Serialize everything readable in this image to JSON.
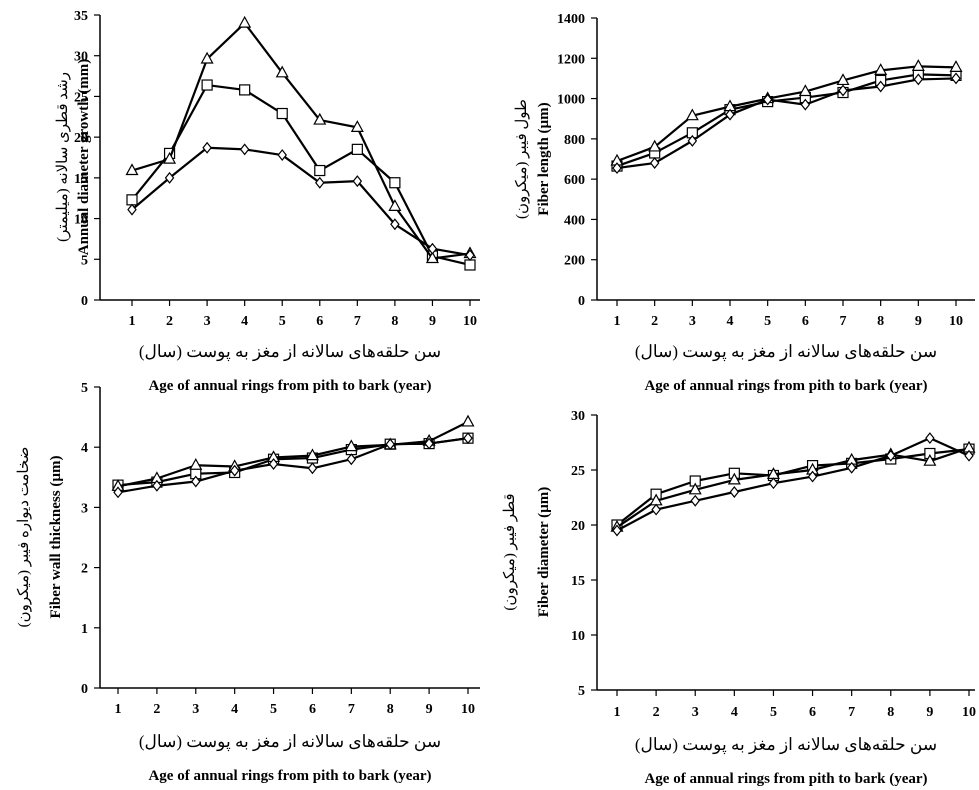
{
  "chart_data": [
    {
      "type": "line",
      "ylabel_fa": "رشد قطری سالانه (میلیمتر)",
      "ylabel_en": "Annual diameter growth (mm)",
      "xlabel_fa": "سن حلقه‌های سالانه از مغز به پوست (سال)",
      "xlabel_en": "Age of annual rings from pith to bark (year)",
      "ylim": [
        0,
        35
      ],
      "y_ticks": [
        0,
        5,
        10,
        15,
        20,
        25,
        30,
        35
      ],
      "x": [
        1,
        2,
        3,
        4,
        5,
        6,
        7,
        8,
        9,
        10
      ],
      "series": [
        {
          "marker": "square",
          "values": [
            12.3,
            18.0,
            26.4,
            25.8,
            22.9,
            15.9,
            18.5,
            14.4,
            5.4,
            4.3
          ]
        },
        {
          "marker": "triangle",
          "values": [
            15.9,
            17.3,
            29.6,
            34.0,
            27.9,
            22.1,
            21.2,
            11.5,
            5.1,
            5.7
          ]
        },
        {
          "marker": "diamond",
          "values": [
            11.1,
            15.0,
            18.7,
            18.5,
            17.8,
            14.4,
            14.6,
            9.3,
            6.3,
            5.5
          ]
        }
      ]
    },
    {
      "type": "line",
      "ylabel_fa": "طول فیبر (میکرون)",
      "ylabel_en": "Fiber length (µm)",
      "xlabel_fa": "سن حلقه‌های سالانه از مغز به پوست (سال)",
      "xlabel_en": "Age of annual rings from pith to bark (year)",
      "ylim": [
        0,
        1400
      ],
      "y_ticks": [
        0,
        200,
        400,
        600,
        800,
        1000,
        1200,
        1400
      ],
      "x": [
        1,
        2,
        3,
        4,
        5,
        6,
        7,
        8,
        9,
        10
      ],
      "series": [
        {
          "marker": "square",
          "values": [
            665,
            730,
            830,
            945,
            985,
            1005,
            1030,
            1090,
            1120,
            1115
          ]
        },
        {
          "marker": "triangle",
          "values": [
            690,
            760,
            915,
            960,
            1000,
            1035,
            1090,
            1140,
            1160,
            1155
          ]
        },
        {
          "marker": "diamond",
          "values": [
            655,
            680,
            790,
            920,
            995,
            970,
            1040,
            1060,
            1095,
            1100
          ]
        }
      ]
    },
    {
      "type": "line",
      "ylabel_fa": "ضخامت دیواره فیبر (میکرون)",
      "ylabel_en": "Fiber wall thickness (µm)",
      "xlabel_fa": "سن حلقه‌های سالانه از مغز به پوست (سال)",
      "xlabel_en": "Age of annual rings from pith to bark (year)",
      "ylim": [
        0,
        5
      ],
      "y_ticks": [
        0,
        1,
        2,
        3,
        4,
        5
      ],
      "x": [
        1,
        2,
        3,
        4,
        5,
        6,
        7,
        8,
        9,
        10
      ],
      "series": [
        {
          "marker": "square",
          "values": [
            3.37,
            3.42,
            3.56,
            3.58,
            3.8,
            3.82,
            3.96,
            4.05,
            4.06,
            4.15
          ]
        },
        {
          "marker": "triangle",
          "values": [
            3.35,
            3.48,
            3.7,
            3.68,
            3.83,
            3.86,
            4.01,
            4.04,
            4.1,
            4.42
          ]
        },
        {
          "marker": "diamond",
          "values": [
            3.25,
            3.36,
            3.43,
            3.61,
            3.72,
            3.65,
            3.8,
            4.05,
            4.06,
            4.15
          ]
        }
      ]
    },
    {
      "type": "line",
      "ylabel_fa": "قطر فیبر (میکرون)",
      "ylabel_en": "Fiber diameter (µm)",
      "xlabel_fa": "سن حلقه‌های سالانه از مغز به پوست (سال)",
      "xlabel_en": "Age of annual rings from pith to bark (year)",
      "ylim": [
        5,
        30
      ],
      "y_ticks": [
        5,
        10,
        15,
        20,
        25,
        30
      ],
      "x": [
        1,
        2,
        3,
        4,
        5,
        6,
        7,
        8,
        9,
        10
      ],
      "series": [
        {
          "marker": "square",
          "values": [
            20.0,
            22.8,
            24.0,
            24.7,
            24.5,
            25.4,
            25.6,
            26.0,
            26.5,
            26.9
          ]
        },
        {
          "marker": "triangle",
          "values": [
            19.8,
            22.2,
            23.2,
            24.1,
            24.6,
            25.0,
            25.9,
            26.4,
            25.8,
            27.0
          ]
        },
        {
          "marker": "diamond",
          "values": [
            19.5,
            21.4,
            22.2,
            23.0,
            23.8,
            24.4,
            25.2,
            26.3,
            27.9,
            26.3
          ]
        }
      ]
    }
  ]
}
